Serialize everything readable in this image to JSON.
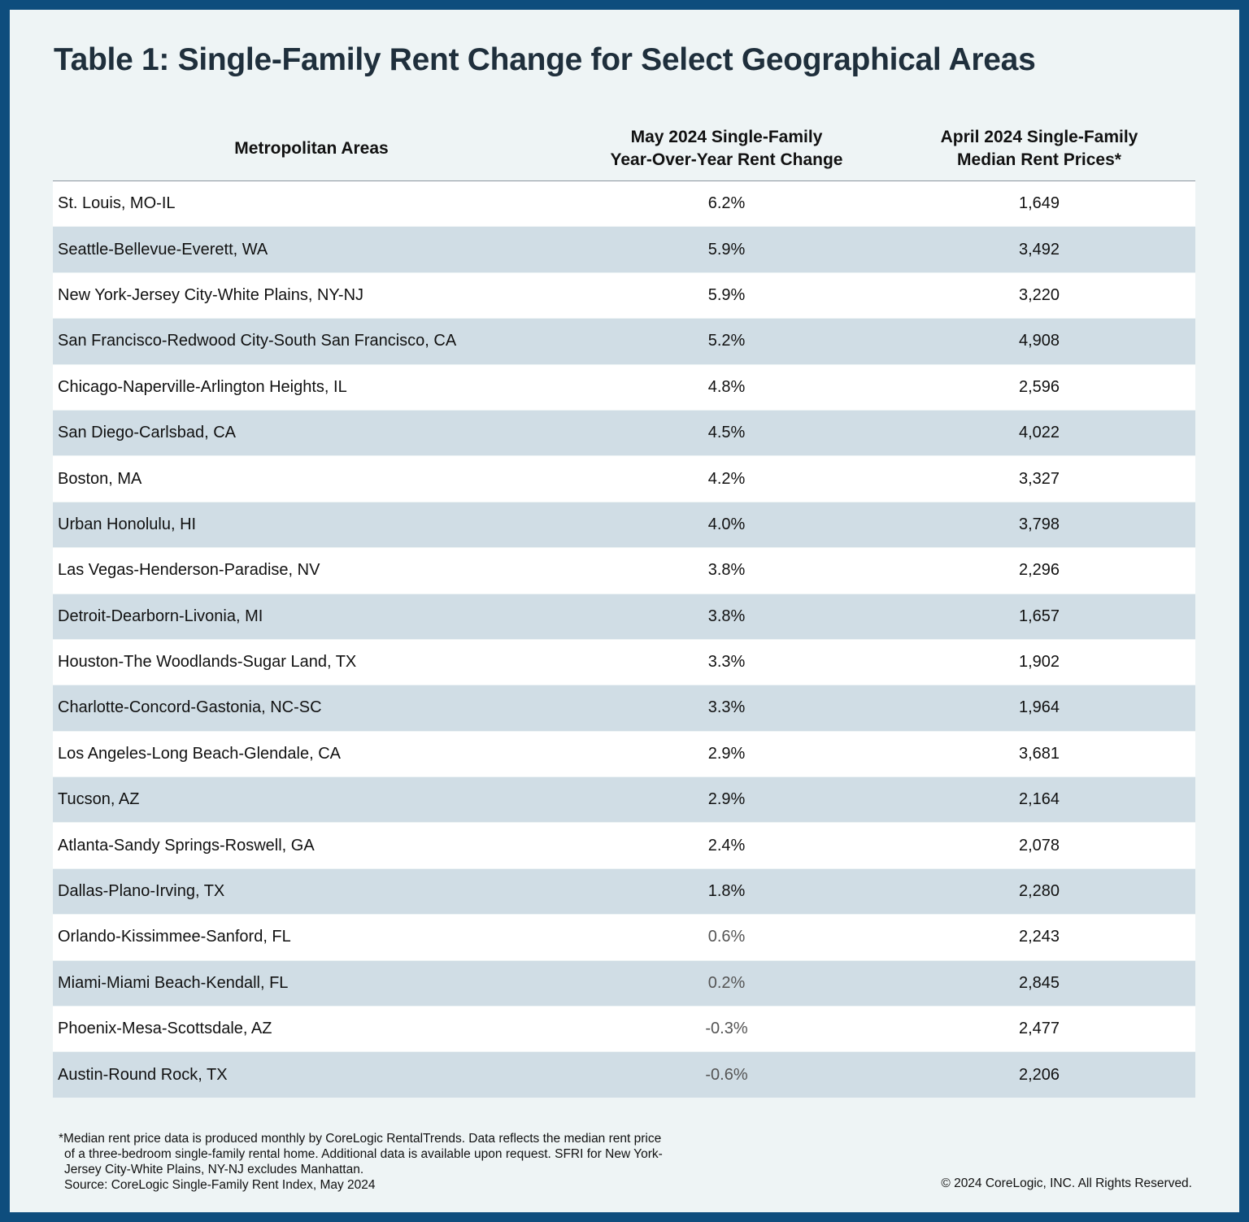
{
  "chart_data": {
    "type": "table",
    "title": "Table 1: Single-Family Rent Change for Select Geographical Areas",
    "columns": [
      "Metropolitan Areas",
      "May 2024 Single-Family\nYear-Over-Year Rent Change",
      "April 2024 Single-Family\nMedian Rent Prices*"
    ],
    "rows": [
      {
        "area": "St. Louis, MO-IL",
        "change": "6.2%",
        "rent": "1,649"
      },
      {
        "area": "Seattle-Bellevue-Everett, WA",
        "change": "5.9%",
        "rent": "3,492"
      },
      {
        "area": "New York-Jersey City-White Plains, NY-NJ",
        "change": "5.9%",
        "rent": "3,220"
      },
      {
        "area": "San Francisco-Redwood City-South San Francisco, CA",
        "change": "5.2%",
        "rent": "4,908"
      },
      {
        "area": "Chicago-Naperville-Arlington Heights, IL",
        "change": "4.8%",
        "rent": "2,596"
      },
      {
        "area": "San Diego-Carlsbad, CA",
        "change": "4.5%",
        "rent": "4,022"
      },
      {
        "area": "Boston, MA",
        "change": "4.2%",
        "rent": "3,327"
      },
      {
        "area": "Urban Honolulu, HI",
        "change": "4.0%",
        "rent": "3,798"
      },
      {
        "area": "Las Vegas-Henderson-Paradise, NV",
        "change": "3.8%",
        "rent": "2,296"
      },
      {
        "area": "Detroit-Dearborn-Livonia, MI",
        "change": "3.8%",
        "rent": "1,657"
      },
      {
        "area": "Houston-The Woodlands-Sugar Land, TX",
        "change": "3.3%",
        "rent": "1,902"
      },
      {
        "area": "Charlotte-Concord-Gastonia, NC-SC",
        "change": "3.3%",
        "rent": "1,964"
      },
      {
        "area": "Los Angeles-Long Beach-Glendale, CA",
        "change": "2.9%",
        "rent": "3,681"
      },
      {
        "area": "Tucson, AZ",
        "change": "2.9%",
        "rent": "2,164"
      },
      {
        "area": "Atlanta-Sandy Springs-Roswell, GA",
        "change": "2.4%",
        "rent": "2,078"
      },
      {
        "area": "Dallas-Plano-Irving, TX",
        "change": "1.8%",
        "rent": "2,280"
      },
      {
        "area": "Orlando-Kissimmee-Sanford, FL",
        "change": "0.6%",
        "rent": "2,243"
      },
      {
        "area": "Miami-Miami Beach-Kendall, FL",
        "change": "0.2%",
        "rent": "2,845"
      },
      {
        "area": "Phoenix-Mesa-Scottsdale, AZ",
        "change": "-0.3%",
        "rent": "2,477"
      },
      {
        "area": "Austin-Round Rock, TX",
        "change": "-0.6%",
        "rent": "2,206"
      }
    ]
  },
  "footnote": {
    "lines": [
      "*Median rent price data is produced monthly by CoreLogic RentalTrends. Data reflects the median rent price",
      "of a three-bedroom single-family rental home. Additional data is available upon request. SFRI for New York-",
      "Jersey City-White Plains, NY-NJ excludes Manhattan.",
      "Source: CoreLogic Single-Family Rent Index, May 2024"
    ],
    "copyright": "© 2024 CoreLogic, INC. All Rights Reserved."
  },
  "colors": {
    "frame": "#0e4d7d",
    "background": "#eef4f5",
    "row_alt": "#d0dde5",
    "row": "#ffffff",
    "title": "#1f2f3c"
  }
}
